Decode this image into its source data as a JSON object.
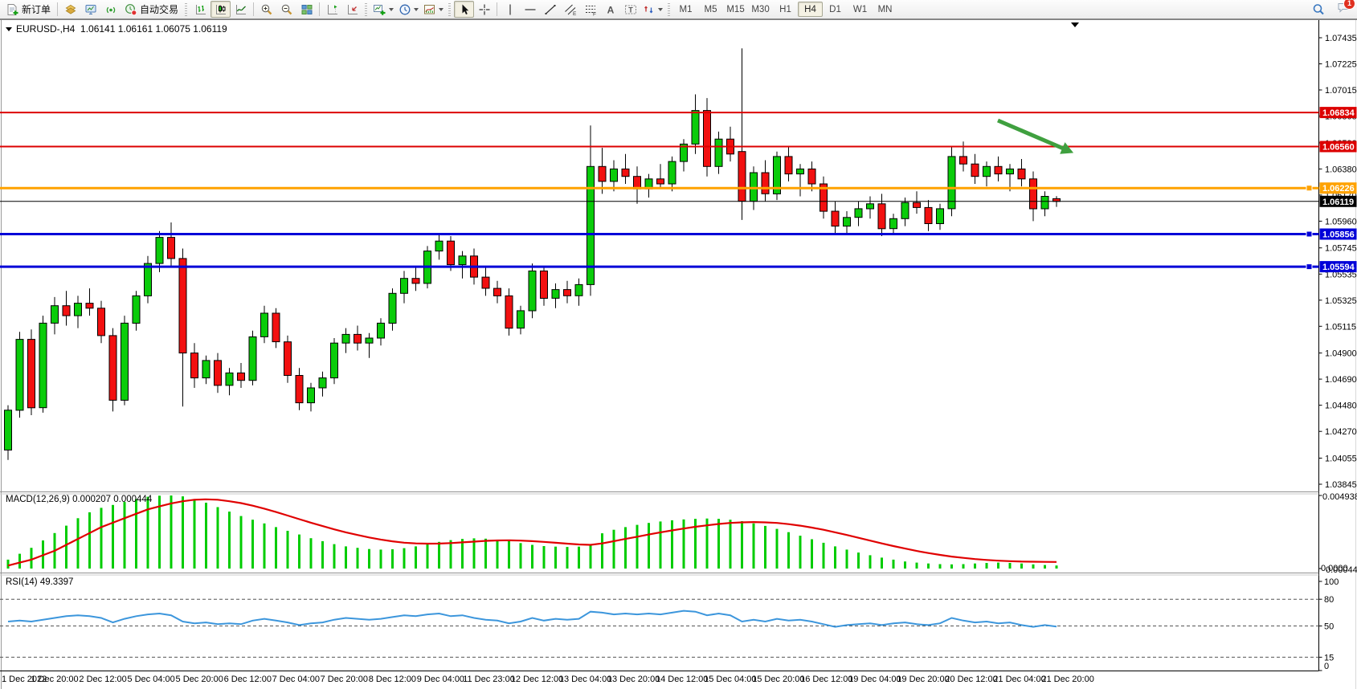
{
  "toolbar": {
    "new_order": "新订单",
    "autotrading": "自动交易",
    "timeframes": [
      "M1",
      "M5",
      "M15",
      "M30",
      "H1",
      "H4",
      "D1",
      "W1",
      "MN"
    ],
    "active_timeframe": "H4",
    "notification_badge": "1",
    "icons": [
      "new-order-icon",
      "profile-icon",
      "market-watch-icon",
      "signals-icon",
      "autotrading-icon",
      "bar-chart-icon",
      "candlestick-icon",
      "line-chart-icon",
      "zoom-in-icon",
      "zoom-out-icon",
      "tile-windows-icon",
      "chart-shift-icon",
      "auto-scroll-icon",
      "new-chart-icon",
      "periods-clock-icon",
      "templates-icon",
      "cursor-icon",
      "crosshair-icon",
      "vertical-line-icon",
      "horizontal-line-icon",
      "trendline-icon",
      "channel-icon",
      "fibonacci-icon",
      "text-icon",
      "text-label-icon",
      "arrows-icon",
      "search-icon",
      "chat-icon"
    ]
  },
  "chart_header": {
    "symbol_period": "EURUSD-,H4",
    "open": "1.06141",
    "high": "1.06161",
    "low": "1.06075",
    "close": "1.06119"
  },
  "indicators": {
    "macd_label": "MACD(12,26,9) 0.000207 0.000444",
    "macd_max": "0.004938",
    "macd_zero": "0.0000",
    "macd_value": "0.000449",
    "rsi_label": "RSI(14) 49.3397"
  },
  "chart_data": {
    "type": "candlestick",
    "symbol": "EURUSD-",
    "period": "H4",
    "title": "EURUSD-,H4  1.06141 1.06161 1.06075 1.06119",
    "price_axis_ticks": [
      "1.07435",
      "1.07225",
      "1.07015",
      "1.06805",
      "1.06590",
      "1.06380",
      "1.06170",
      "1.05960",
      "1.05745",
      "1.05535",
      "1.05325",
      "1.05115",
      "1.04900",
      "1.04690",
      "1.04480",
      "1.04270",
      "1.04055",
      "1.03845"
    ],
    "time_axis_labels": [
      "1 Dec 2022",
      "1 Dec 20:00",
      "2 Dec 12:00",
      "5 Dec 04:00",
      "5 Dec 20:00",
      "6 Dec 12:00",
      "7 Dec 04:00",
      "7 Dec 20:00",
      "8 Dec 12:00",
      "9 Dec 04:00",
      "11 Dec 23:00",
      "12 Dec 12:00",
      "13 Dec 04:00",
      "13 Dec 20:00",
      "14 Dec 12:00",
      "15 Dec 04:00",
      "15 Dec 20:00",
      "16 Dec 12:00",
      "19 Dec 04:00",
      "19 Dec 20:00",
      "20 Dec 12:00",
      "21 Dec 04:00",
      "21 Dec 20:00"
    ],
    "rsi_axis_labels": [
      "100",
      "80",
      "50",
      "15",
      "0"
    ],
    "levels": [
      {
        "price": 1.06834,
        "label": "1.06834",
        "color": "#DC0000",
        "width": 2,
        "handle": false
      },
      {
        "price": 1.0656,
        "label": "1.06560",
        "color": "#DC0000",
        "width": 2,
        "handle": false
      },
      {
        "price": 1.06226,
        "label": "1.06226",
        "color": "#FFA200",
        "width": 3,
        "handle": true
      },
      {
        "price": 1.06119,
        "label": "1.06119",
        "color": "#000000",
        "width": 1,
        "handle": false,
        "role": "current-price"
      },
      {
        "price": 1.05856,
        "label": "1.05856",
        "color": "#0000D8",
        "width": 3,
        "handle": true
      },
      {
        "price": 1.05594,
        "label": "1.05594",
        "color": "#0000D8",
        "width": 3,
        "handle": true
      }
    ],
    "current_price": 1.06119,
    "price_range": {
      "top": 1.07571,
      "bottom": 1.03787
    },
    "candles": [
      [
        1.0412,
        1.0448,
        1.0404,
        1.0444
      ],
      [
        1.0444,
        1.0507,
        1.0438,
        1.0501
      ],
      [
        1.0501,
        1.0509,
        1.044,
        1.0446
      ],
      [
        1.0446,
        1.052,
        1.0442,
        1.0514
      ],
      [
        1.0514,
        1.0535,
        1.0505,
        1.0528
      ],
      [
        1.0528,
        1.054,
        1.0512,
        1.052
      ],
      [
        1.052,
        1.0536,
        1.051,
        1.053
      ],
      [
        1.053,
        1.0542,
        1.052,
        1.0526
      ],
      [
        1.0526,
        1.0532,
        1.0498,
        1.0504
      ],
      [
        1.0504,
        1.051,
        1.0443,
        1.0452
      ],
      [
        1.0452,
        1.052,
        1.0448,
        1.0514
      ],
      [
        1.0514,
        1.054,
        1.0508,
        1.0536
      ],
      [
        1.0536,
        1.0568,
        1.053,
        1.0562
      ],
      [
        1.0562,
        1.0588,
        1.0555,
        1.0583
      ],
      [
        1.0583,
        1.0595,
        1.056,
        1.0566
      ],
      [
        1.0566,
        1.0574,
        1.0447,
        1.049
      ],
      [
        1.049,
        1.0498,
        1.0462,
        1.047
      ],
      [
        1.047,
        1.0488,
        1.0465,
        1.0484
      ],
      [
        1.0484,
        1.049,
        1.0458,
        1.0464
      ],
      [
        1.0464,
        1.0478,
        1.0456,
        1.0474
      ],
      [
        1.0474,
        1.0482,
        1.0462,
        1.0468
      ],
      [
        1.0468,
        1.0508,
        1.0464,
        1.0503
      ],
      [
        1.0503,
        1.0528,
        1.0498,
        1.0522
      ],
      [
        1.0522,
        1.0526,
        1.0494,
        1.0499
      ],
      [
        1.0499,
        1.0504,
        1.0466,
        1.0472
      ],
      [
        1.0472,
        1.0478,
        1.0444,
        1.045
      ],
      [
        1.045,
        1.0466,
        1.0443,
        1.0462
      ],
      [
        1.0462,
        1.0475,
        1.0455,
        1.047
      ],
      [
        1.047,
        1.0502,
        1.0465,
        1.0498
      ],
      [
        1.0498,
        1.051,
        1.049,
        1.0505
      ],
      [
        1.0505,
        1.0512,
        1.0492,
        1.0498
      ],
      [
        1.0498,
        1.0506,
        1.0486,
        1.0502
      ],
      [
        1.0502,
        1.0518,
        1.0496,
        1.0514
      ],
      [
        1.0514,
        1.0542,
        1.0508,
        1.0538
      ],
      [
        1.0538,
        1.0556,
        1.053,
        1.055
      ],
      [
        1.055,
        1.056,
        1.054,
        1.0546
      ],
      [
        1.0546,
        1.0576,
        1.0542,
        1.0572
      ],
      [
        1.0572,
        1.0586,
        1.0565,
        1.058
      ],
      [
        1.058,
        1.0584,
        1.0556,
        1.0561
      ],
      [
        1.0561,
        1.0572,
        1.055,
        1.0568
      ],
      [
        1.0568,
        1.0574,
        1.0545,
        1.0551
      ],
      [
        1.0551,
        1.056,
        1.0536,
        1.0542
      ],
      [
        1.0542,
        1.0548,
        1.053,
        1.0536
      ],
      [
        1.0536,
        1.0542,
        1.0504,
        1.051
      ],
      [
        1.051,
        1.0528,
        1.0505,
        1.0524
      ],
      [
        1.0524,
        1.0562,
        1.0518,
        1.0556
      ],
      [
        1.0556,
        1.056,
        1.0528,
        1.0534
      ],
      [
        1.0534,
        1.0546,
        1.0526,
        1.0541
      ],
      [
        1.0541,
        1.0548,
        1.053,
        1.0536
      ],
      [
        1.0536,
        1.055,
        1.0528,
        1.0545
      ],
      [
        1.0545,
        1.0673,
        1.0536,
        1.064
      ],
      [
        1.064,
        1.0655,
        1.0618,
        1.0628
      ],
      [
        1.0628,
        1.0645,
        1.062,
        1.0638
      ],
      [
        1.0638,
        1.065,
        1.0626,
        1.0632
      ],
      [
        1.0632,
        1.064,
        1.061,
        1.0622
      ],
      [
        1.0622,
        1.0634,
        1.0615,
        1.063
      ],
      [
        1.063,
        1.0642,
        1.0622,
        1.0626
      ],
      [
        1.0626,
        1.0648,
        1.062,
        1.0644
      ],
      [
        1.0644,
        1.0662,
        1.0636,
        1.0658
      ],
      [
        1.0658,
        1.0698,
        1.065,
        1.0685
      ],
      [
        1.0685,
        1.0695,
        1.0632,
        1.064
      ],
      [
        1.064,
        1.0668,
        1.0634,
        1.0662
      ],
      [
        1.0662,
        1.0672,
        1.0644,
        1.065
      ],
      [
        1.0652,
        1.0735,
        1.0597,
        1.0612
      ],
      [
        1.0612,
        1.064,
        1.0605,
        1.0635
      ],
      [
        1.0635,
        1.0645,
        1.0612,
        1.0618
      ],
      [
        1.0618,
        1.0652,
        1.0613,
        1.0648
      ],
      [
        1.0648,
        1.0656,
        1.0628,
        1.0634
      ],
      [
        1.0634,
        1.0642,
        1.0616,
        1.0638
      ],
      [
        1.0638,
        1.0644,
        1.062,
        1.0626
      ],
      [
        1.0626,
        1.0632,
        1.0598,
        1.0604
      ],
      [
        1.0604,
        1.0612,
        1.0586,
        1.0592
      ],
      [
        1.0592,
        1.0604,
        1.0585,
        1.0599
      ],
      [
        1.0599,
        1.0612,
        1.0592,
        1.0606
      ],
      [
        1.0606,
        1.0616,
        1.0598,
        1.061
      ],
      [
        1.061,
        1.0618,
        1.0584,
        1.059
      ],
      [
        1.059,
        1.0602,
        1.0585,
        1.0598
      ],
      [
        1.0598,
        1.0615,
        1.0592,
        1.0611
      ],
      [
        1.0611,
        1.062,
        1.0602,
        1.0607
      ],
      [
        1.0607,
        1.0613,
        1.0588,
        1.0594
      ],
      [
        1.0594,
        1.061,
        1.0589,
        1.0606
      ],
      [
        1.0606,
        1.0656,
        1.06,
        1.0648
      ],
      [
        1.0648,
        1.066,
        1.0636,
        1.0642
      ],
      [
        1.0642,
        1.065,
        1.0626,
        1.0632
      ],
      [
        1.0632,
        1.0644,
        1.0624,
        1.064
      ],
      [
        1.064,
        1.0648,
        1.0628,
        1.0634
      ],
      [
        1.0634,
        1.0642,
        1.062,
        1.0638
      ],
      [
        1.0638,
        1.0646,
        1.0624,
        1.063
      ],
      [
        1.063,
        1.0636,
        1.0596,
        1.0606
      ],
      [
        1.0606,
        1.062,
        1.06,
        1.0616
      ],
      [
        1.06141,
        1.06161,
        1.06075,
        1.06119
      ]
    ],
    "macd": {
      "max": 0.004938,
      "last_histogram": 0.000207,
      "last_signal": 0.000444,
      "histogram": [
        0.0006,
        0.001,
        0.0014,
        0.0019,
        0.0024,
        0.0029,
        0.0034,
        0.0038,
        0.0041,
        0.0043,
        0.0045,
        0.0047,
        0.00485,
        0.00492,
        0.00494,
        0.00488,
        0.0047,
        0.00445,
        0.00415,
        0.00385,
        0.00355,
        0.0033,
        0.00305,
        0.0028,
        0.00255,
        0.0023,
        0.00205,
        0.00185,
        0.00165,
        0.0015,
        0.0014,
        0.00132,
        0.00128,
        0.0013,
        0.00138,
        0.0015,
        0.00165,
        0.0018,
        0.00192,
        0.002,
        0.00204,
        0.00202,
        0.00195,
        0.00185,
        0.00172,
        0.0016,
        0.00152,
        0.00148,
        0.00146,
        0.00148,
        0.00158,
        0.00238,
        0.00262,
        0.0028,
        0.00295,
        0.00308,
        0.00318,
        0.00326,
        0.00332,
        0.00336,
        0.00338,
        0.00336,
        0.0033,
        0.0032,
        0.00305,
        0.00288,
        0.00268,
        0.00246,
        0.00222,
        0.00198,
        0.00174,
        0.0015,
        0.00128,
        0.00108,
        0.0009,
        0.00074,
        0.0006,
        0.00048,
        0.0004,
        0.00034,
        0.0003,
        0.00028,
        0.0003,
        0.00034,
        0.00038,
        0.0004,
        0.00038,
        0.00034,
        0.00028,
        0.00024,
        0.000207
      ],
      "signal": [
        0.0002,
        0.0004,
        0.0006,
        0.0009,
        0.0012,
        0.0016,
        0.002,
        0.0024,
        0.0028,
        0.0031,
        0.0034,
        0.0037,
        0.004,
        0.0042,
        0.0044,
        0.00455,
        0.00465,
        0.00468,
        0.00465,
        0.00455,
        0.00442,
        0.00425,
        0.00405,
        0.00382,
        0.00358,
        0.00334,
        0.0031,
        0.00287,
        0.00265,
        0.00245,
        0.00227,
        0.0021,
        0.00196,
        0.00184,
        0.00175,
        0.0017,
        0.00168,
        0.00169,
        0.00172,
        0.00177,
        0.00182,
        0.00187,
        0.0019,
        0.00191,
        0.00189,
        0.00185,
        0.0018,
        0.00174,
        0.00168,
        0.00163,
        0.0016,
        0.0017,
        0.00185,
        0.002,
        0.00215,
        0.0023,
        0.00245,
        0.00258,
        0.0027,
        0.00282,
        0.00292,
        0.00301,
        0.00308,
        0.00312,
        0.00314,
        0.00312,
        0.00308,
        0.003,
        0.0029,
        0.00277,
        0.00262,
        0.00245,
        0.00227,
        0.00208,
        0.00189,
        0.0017,
        0.00152,
        0.00135,
        0.00119,
        0.00105,
        0.00092,
        0.00081,
        0.00072,
        0.00064,
        0.00058,
        0.00053,
        0.0005,
        0.00047,
        0.00046,
        0.00045,
        0.000444
      ]
    },
    "rsi": {
      "last": 49.3397,
      "dashed_levels": [
        80,
        50,
        15
      ],
      "values": [
        55,
        56,
        55,
        57,
        59,
        61,
        62,
        61,
        59,
        54,
        58,
        61,
        63,
        64,
        62,
        55,
        53,
        54,
        52,
        53,
        52,
        56,
        58,
        56,
        54,
        51,
        53,
        54,
        57,
        59,
        58,
        57,
        58,
        60,
        62,
        61,
        63,
        64,
        61,
        62,
        59,
        57,
        56,
        53,
        55,
        59,
        56,
        58,
        57,
        58,
        66,
        65,
        63,
        64,
        63,
        64,
        63,
        65,
        67,
        66,
        62,
        64,
        62,
        55,
        57,
        55,
        58,
        56,
        57,
        55,
        52,
        49,
        51,
        52,
        53,
        51,
        53,
        54,
        52,
        51,
        53,
        59,
        56,
        54,
        55,
        53,
        54,
        51,
        49,
        51,
        49.3
      ]
    },
    "annotation_arrow": {
      "from": [
        1242,
        150
      ],
      "to": [
        1326,
        186
      ],
      "color": "#3FA03F"
    },
    "colors": {
      "bull": "#0ACC0A",
      "bear": "#F21010",
      "outline": "#000000",
      "macd_histogram": "#00CC00",
      "macd_signal": "#E00000",
      "rsi_line": "#3C96DC",
      "background": "#FFFFFF"
    }
  }
}
